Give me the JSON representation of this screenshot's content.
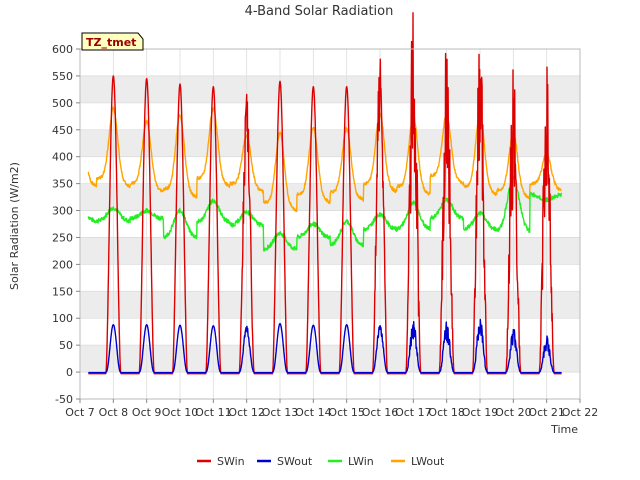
{
  "chart_data": {
    "type": "line",
    "title": "4-Band Solar Radiation",
    "xlabel": "Time",
    "ylabel": "Solar Radiation (W/m2)",
    "tag": "TZ_tmet",
    "ylim": [
      -50,
      600
    ],
    "xlim": [
      7,
      22
    ],
    "y_ticks": [
      -50,
      0,
      50,
      100,
      150,
      200,
      250,
      300,
      350,
      400,
      450,
      500,
      550,
      600
    ],
    "x_ticks": [
      7,
      8,
      9,
      10,
      11,
      12,
      13,
      14,
      15,
      16,
      17,
      18,
      19,
      20,
      21,
      22
    ],
    "x_tick_labels": [
      "Oct 7",
      "Oct 8",
      "Oct 9",
      "Oct 10",
      "Oct 11",
      "Oct 12",
      "Oct 13",
      "Oct 14",
      "Oct 15",
      "Oct 16",
      "Oct 17",
      "Oct 18",
      "Oct 19",
      "Oct 20",
      "Oct 21",
      "Oct 22"
    ],
    "grid": true,
    "legend_position": "bottom",
    "days": [
      {
        "day": 8,
        "sw_peak": 550,
        "swout_peak": 88,
        "lw_base": 280,
        "lw_bump": 25,
        "lwout_night": 360,
        "lwout_peak": 490
      },
      {
        "day": 9,
        "sw_peak": 545,
        "swout_peak": 88,
        "lw_base": 285,
        "lw_bump": 15,
        "lwout_night": 350,
        "lwout_peak": 465
      },
      {
        "day": 10,
        "sw_peak": 535,
        "swout_peak": 87,
        "lw_base": 250,
        "lw_bump": 50,
        "lwout_night": 340,
        "lwout_peak": 478
      },
      {
        "day": 11,
        "sw_peak": 530,
        "swout_peak": 86,
        "lw_base": 278,
        "lw_bump": 40,
        "lwout_night": 360,
        "lwout_peak": 490
      },
      {
        "day": 12,
        "sw_peak": 465,
        "swout_peak": 80,
        "lw_base": 272,
        "lw_bump": 25,
        "lwout_night": 350,
        "lwout_peak": 440
      },
      {
        "day": 13,
        "sw_peak": 540,
        "swout_peak": 90,
        "lw_base": 228,
        "lw_bump": 30,
        "lwout_night": 315,
        "lwout_peak": 445
      },
      {
        "day": 14,
        "sw_peak": 530,
        "swout_peak": 87,
        "lw_base": 250,
        "lw_bump": 25,
        "lwout_night": 330,
        "lwout_peak": 455
      },
      {
        "day": 15,
        "sw_peak": 530,
        "swout_peak": 88,
        "lw_base": 235,
        "lw_bump": 45,
        "lwout_night": 335,
        "lwout_peak": 452
      },
      {
        "day": 16,
        "sw_peak": 520,
        "swout_peak": 83,
        "lw_base": 265,
        "lw_bump": 28,
        "lwout_night": 350,
        "lwout_peak": 480
      },
      {
        "day": 17,
        "sw_peak": 540,
        "swout_peak": 80,
        "lw_base": 265,
        "lw_bump": 50,
        "lwout_night": 345,
        "lwout_peak": 475
      },
      {
        "day": 18,
        "sw_peak": 485,
        "swout_peak": 75,
        "lw_base": 285,
        "lw_bump": 35,
        "lwout_night": 365,
        "lwout_peak": 478
      },
      {
        "day": 19,
        "sw_peak": 505,
        "swout_peak": 82,
        "lw_base": 265,
        "lw_bump": 30,
        "lwout_night": 345,
        "lwout_peak": 480
      },
      {
        "day": 20,
        "sw_peak": 440,
        "swout_peak": 68,
        "lw_base": 260,
        "lw_bump": 100,
        "lwout_night": 338,
        "lwout_peak": 445
      },
      {
        "day": 21,
        "sw_peak": 440,
        "swout_peak": 55,
        "lw_base": 330,
        "lw_bump": -10,
        "lwout_night": 350,
        "lwout_peak": 405
      }
    ],
    "series": [
      {
        "name": "SWin",
        "color": "#dd0000"
      },
      {
        "name": "SWout",
        "color": "#0000cc"
      },
      {
        "name": "LWin",
        "color": "#22ee22"
      },
      {
        "name": "LWout",
        "color": "#ffa500"
      }
    ]
  }
}
